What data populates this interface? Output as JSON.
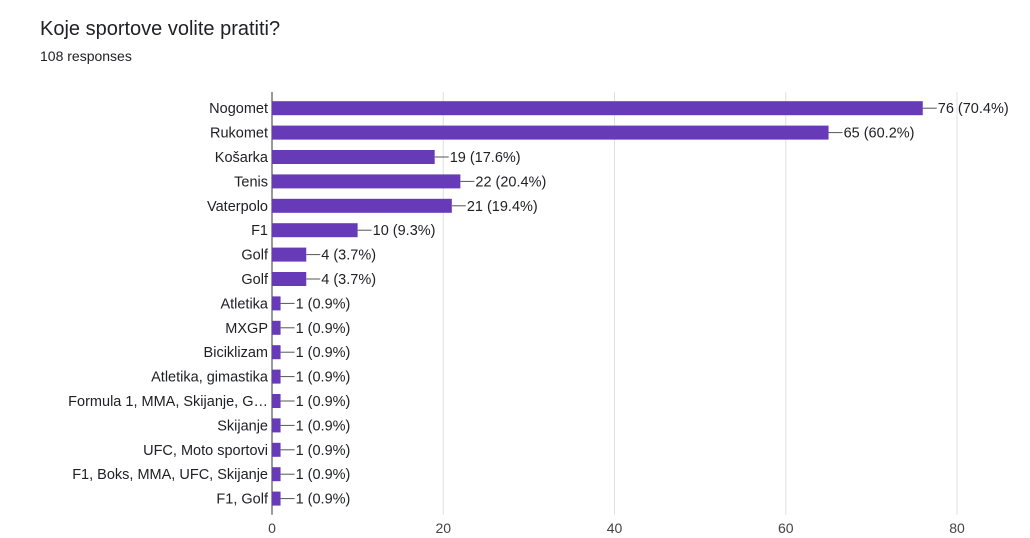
{
  "header": {
    "title": "Koje sportove volite pratiti?",
    "subtitle": "108 responses"
  },
  "chart_data": {
    "type": "bar",
    "orientation": "horizontal",
    "bar_color": "#673ab7",
    "categories": [
      "Nogomet",
      "Rukomet",
      "Košarka",
      "Tenis",
      "Vaterpolo",
      "F1",
      "Golf",
      "Golf",
      "Atletika",
      "MXGP",
      "Biciklizam",
      "Atletika, gimastika",
      "Formula 1, MMA, Skijanje, G…",
      "Skijanje",
      "UFC, Moto sportovi",
      "F1, Boks, MMA, UFC, Skijanje",
      "F1, Golf"
    ],
    "values": [
      76,
      65,
      19,
      22,
      21,
      10,
      4,
      4,
      1,
      1,
      1,
      1,
      1,
      1,
      1,
      1,
      1
    ],
    "data_labels": [
      "76 (70.4%)",
      "65 (60.2%)",
      "19 (17.6%)",
      "22 (20.4%)",
      "21 (19.4%)",
      "10 (9.3%)",
      "4 (3.7%)",
      "4 (3.7%)",
      "1 (0.9%)",
      "1 (0.9%)",
      "1 (0.9%)",
      "1 (0.9%)",
      "1 (0.9%)",
      "1 (0.9%)",
      "1 (0.9%)",
      "1 (0.9%)",
      "1 (0.9%)"
    ],
    "x_ticks": [
      "0",
      "20",
      "40",
      "60",
      "80"
    ],
    "xlim": [
      0,
      80
    ],
    "grid": true
  }
}
